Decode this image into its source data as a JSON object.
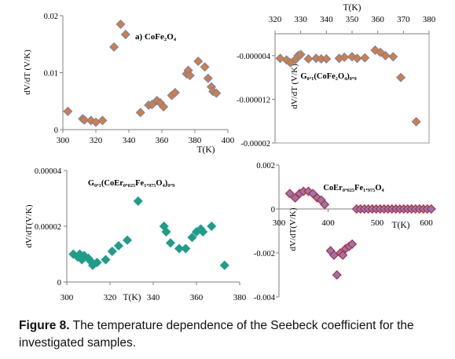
{
  "caption": {
    "label": "Figure 8.",
    "text": " The temperature dependence of the Seebeck coefficient for the investigated samples."
  },
  "chart_data": [
    {
      "type": "scatter",
      "panel": "a",
      "title": "a) CoFe₂O₄",
      "xlabel": "T(K)",
      "ylabel": "dV/dT (V/K)",
      "xlim": [
        300,
        400
      ],
      "ylim": [
        0,
        0.02
      ],
      "xticks": [
        "300",
        "320",
        "340",
        "360",
        "380",
        "400"
      ],
      "yticks": [
        "0",
        "0.01",
        "0.02"
      ],
      "marker_color": "#e07b2e",
      "marker_edge": "#6f86b8",
      "points": [
        [
          303,
          0.0032
        ],
        [
          312,
          0.0019
        ],
        [
          313,
          0.0017
        ],
        [
          317,
          0.0016
        ],
        [
          320,
          0.0013
        ],
        [
          324,
          0.0016
        ],
        [
          331,
          0.0145
        ],
        [
          335,
          0.0185
        ],
        [
          338,
          0.0167
        ],
        [
          347,
          0.003
        ],
        [
          352,
          0.0043
        ],
        [
          354,
          0.0044
        ],
        [
          357,
          0.0051
        ],
        [
          359,
          0.0047
        ],
        [
          361,
          0.004
        ],
        [
          366,
          0.006
        ],
        [
          368,
          0.0065
        ],
        [
          375,
          0.0098
        ],
        [
          376,
          0.0104
        ],
        [
          377,
          0.0095
        ],
        [
          382,
          0.012
        ],
        [
          386,
          0.011
        ],
        [
          388,
          0.009
        ],
        [
          390,
          0.0075
        ],
        [
          391,
          0.0067
        ],
        [
          393,
          0.0064
        ]
      ]
    },
    {
      "type": "scatter",
      "panel": "b",
      "title": "G₀.₁(CoFe₂O₄)₀.₉",
      "xlabel": "T(K)",
      "ylabel": "dV/dT (V/K)",
      "xlim": [
        320,
        380
      ],
      "ylim": [
        -2e-05,
        0
      ],
      "xticks": [
        "320",
        "330",
        "340",
        "350",
        "360",
        "370",
        "380"
      ],
      "yticks": [
        "-0.000004",
        "-0.000012",
        "-0.00002"
      ],
      "ytick_values": [
        -4e-06,
        -1.2e-05,
        -2e-05
      ],
      "marker_color": "#e07b2e",
      "marker_edge": "#6f86b8",
      "points": [
        [
          322,
          -4.5e-06
        ],
        [
          324.5,
          -4.8e-06
        ],
        [
          326,
          -5.3e-06
        ],
        [
          328,
          -4.7e-06
        ],
        [
          329,
          -4e-06
        ],
        [
          330,
          -3.8e-06
        ],
        [
          333,
          -4.6e-06
        ],
        [
          336,
          -4.5e-06
        ],
        [
          338,
          -4.6e-06
        ],
        [
          340,
          -4.6e-06
        ],
        [
          345,
          -4.5e-06
        ],
        [
          347,
          -4.3e-06
        ],
        [
          350,
          -4.2e-06
        ],
        [
          352,
          -4.5e-06
        ],
        [
          355,
          -4.4e-06
        ],
        [
          359,
          -3e-06
        ],
        [
          361,
          -3.4e-06
        ],
        [
          363,
          -4e-06
        ],
        [
          366,
          -4.2e-06
        ],
        [
          369,
          -8e-06
        ],
        [
          375,
          -1.61e-05
        ]
      ]
    },
    {
      "type": "scatter",
      "panel": "c",
      "title": "G₀.₁(CoEr₀.₀₂₅Fe₁.₉₇₅O₄)₀.₉",
      "xlabel": "T(K)",
      "ylabel": "dV/dT(V/K)",
      "xlim": [
        300,
        380
      ],
      "ylim": [
        0,
        4e-05
      ],
      "xticks": [
        "300",
        "320",
        "340",
        "360",
        "380"
      ],
      "yticks": [
        "0",
        "0.00002",
        "0.00004"
      ],
      "marker_color": "#1e9e8a",
      "marker_edge": "#1e9e8a",
      "points": [
        [
          303,
          1e-05
        ],
        [
          305,
          9e-06
        ],
        [
          306,
          1e-05
        ],
        [
          307,
          8e-06
        ],
        [
          308,
          9.5e-06
        ],
        [
          310,
          8.5e-06
        ],
        [
          311,
          7.5e-06
        ],
        [
          312,
          6e-06
        ],
        [
          314,
          7e-06
        ],
        [
          318,
          8e-06
        ],
        [
          321,
          1.1e-05
        ],
        [
          324,
          1.3e-05
        ],
        [
          328,
          1.5e-05
        ],
        [
          333,
          2.9e-05
        ],
        [
          345,
          2e-05
        ],
        [
          346,
          1.8e-05
        ],
        [
          348,
          1.4e-05
        ],
        [
          352,
          1.2e-05
        ],
        [
          355,
          1.2e-05
        ],
        [
          358,
          1.6e-05
        ],
        [
          360,
          1.8e-05
        ],
        [
          362,
          1.9e-05
        ],
        [
          363,
          1.8e-05
        ],
        [
          367,
          2e-05
        ],
        [
          373,
          6e-06
        ]
      ]
    },
    {
      "type": "scatter",
      "panel": "d",
      "title": "CoEr₀.₀₂₅Fe₁.₉₇₅O₄",
      "xlabel": "T(K)",
      "ylabel": "dV/dT(V/K)",
      "xlim": [
        300,
        620
      ],
      "ylim": [
        -0.004,
        0.002
      ],
      "xticks": [
        "300",
        "400",
        "500",
        "600"
      ],
      "yticks": [
        "0.002",
        "0",
        "-0.002",
        "-0.004"
      ],
      "ytick_values": [
        0.002,
        0,
        -0.002,
        -0.004
      ],
      "marker_color": "#8e79b8",
      "marker_edge": "#c0282e",
      "points": [
        [
          322,
          0.0007
        ],
        [
          333,
          0.0005
        ],
        [
          342,
          0.0007
        ],
        [
          350,
          0.0008
        ],
        [
          360,
          0.0008
        ],
        [
          369,
          0.0007
        ],
        [
          378,
          0.0005
        ],
        [
          386,
          0.0004
        ],
        [
          393,
          0.0002
        ],
        [
          405,
          -0.0019
        ],
        [
          412,
          -0.0021
        ],
        [
          418,
          -0.003
        ],
        [
          425,
          -0.002
        ],
        [
          430,
          -0.0021
        ],
        [
          436,
          -0.0018
        ],
        [
          443,
          -0.0017
        ],
        [
          449,
          -0.0016
        ],
        [
          458,
          0
        ],
        [
          466,
          0
        ],
        [
          474,
          0
        ],
        [
          482,
          0
        ],
        [
          490,
          0
        ],
        [
          498,
          0
        ],
        [
          506,
          0
        ],
        [
          514,
          0
        ],
        [
          522,
          0
        ],
        [
          530,
          0
        ],
        [
          538,
          0
        ],
        [
          546,
          0
        ],
        [
          554,
          0
        ],
        [
          562,
          0
        ],
        [
          570,
          0
        ],
        [
          578,
          0
        ],
        [
          586,
          0
        ],
        [
          594,
          0
        ],
        [
          602,
          0
        ],
        [
          610,
          0
        ]
      ]
    }
  ]
}
